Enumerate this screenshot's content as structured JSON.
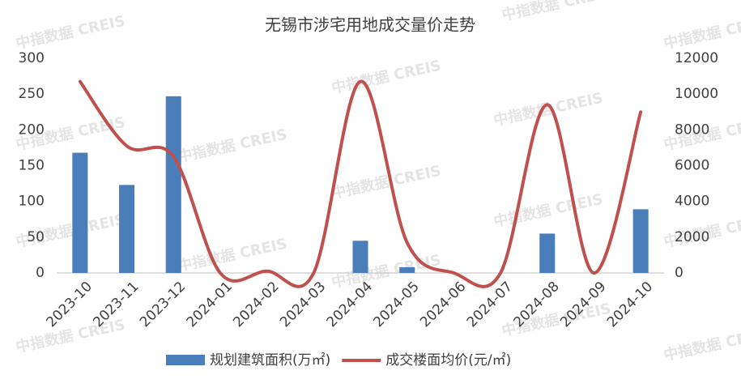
{
  "chart_data": {
    "type": "bar-line",
    "title": "无锡市涉宅用地成交量价走势",
    "watermark": "中指数据 CREIS",
    "categories": [
      "2023-10",
      "2023-11",
      "2023-12",
      "2024-01",
      "2024-02",
      "2024-03",
      "2024-04",
      "2024-05",
      "2024-06",
      "2024-07",
      "2024-08",
      "2024-09",
      "2024-10"
    ],
    "series": [
      {
        "name": "规划建筑面积(万㎡)",
        "type": "bar",
        "color": "#4a7ebb",
        "values": [
          168,
          123,
          247,
          0,
          0,
          0,
          45,
          8,
          0,
          0,
          55,
          0,
          89
        ]
      },
      {
        "name": "成交楼面均价(元/㎡)",
        "type": "line",
        "axis": "y2",
        "color": "#c0504d",
        "values": [
          10700,
          7100,
          6500,
          0,
          100,
          0,
          10700,
          1700,
          0,
          0,
          9400,
          0,
          9000
        ]
      }
    ],
    "ylim": [
      0,
      300
    ],
    "yticks": [
      0,
      50,
      100,
      150,
      200,
      250,
      300
    ],
    "y2lim": [
      0,
      12000
    ],
    "y2ticks": [
      0,
      2000,
      4000,
      6000,
      8000,
      10000,
      12000
    ]
  }
}
